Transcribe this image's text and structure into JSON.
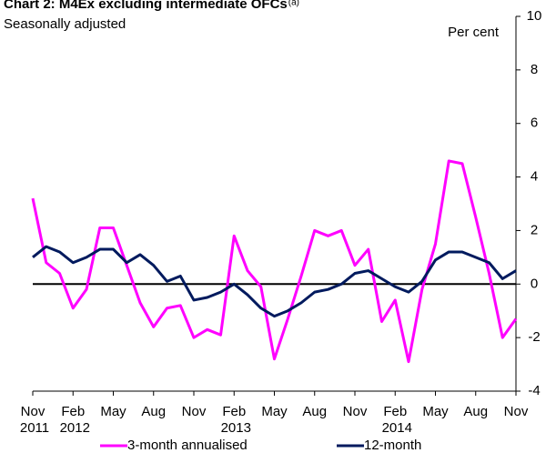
{
  "chart_data": {
    "type": "line",
    "title": "Chart 2: M4Ex excluding intermediate OFCs",
    "title_note": "(a)",
    "subtitle": "Seasonally adjusted",
    "y_label": "Per cent",
    "categories": [
      "Nov",
      null,
      null,
      "Feb",
      null,
      null,
      "May",
      null,
      null,
      "Aug",
      null,
      null,
      "Nov",
      null,
      null,
      "Feb",
      null,
      null,
      "May",
      null,
      null,
      "Aug",
      null,
      null,
      "Nov",
      null,
      null,
      "Feb",
      null,
      null,
      "May",
      null,
      null,
      "Aug",
      null,
      null,
      "Nov"
    ],
    "year_labels": [
      "2011",
      null,
      null,
      "2012",
      null,
      null,
      null,
      null,
      null,
      null,
      null,
      null,
      null,
      null,
      null,
      "2013",
      null,
      null,
      null,
      null,
      null,
      null,
      null,
      null,
      null,
      null,
      null,
      "2014",
      null,
      null,
      null,
      null,
      null,
      null,
      null,
      null,
      null
    ],
    "series": [
      {
        "name": "3-month annualised",
        "color": "#ff00ff",
        "values": [
          3.2,
          0.8,
          0.4,
          -0.9,
          -0.2,
          2.1,
          2.1,
          0.7,
          -0.7,
          -1.6,
          -0.9,
          -0.8,
          -2.0,
          -1.7,
          -1.9,
          1.8,
          0.5,
          -0.1,
          -2.8,
          -1.3,
          0.3,
          2.0,
          1.8,
          2.0,
          0.7,
          1.3,
          -1.4,
          -0.6,
          -2.9,
          -0.2,
          1.5,
          4.6,
          4.5,
          2.5,
          0.4,
          -2.0,
          -1.3
        ]
      },
      {
        "name": "12-month",
        "color": "#001a5e",
        "values": [
          1.0,
          1.4,
          1.2,
          0.8,
          1.0,
          1.3,
          1.3,
          0.8,
          1.1,
          0.7,
          0.1,
          0.3,
          -0.6,
          -0.5,
          -0.3,
          0.0,
          -0.4,
          -0.9,
          -1.2,
          -1.0,
          -0.7,
          -0.3,
          -0.2,
          0.0,
          0.4,
          0.5,
          0.2,
          -0.1,
          -0.3,
          0.1,
          0.9,
          1.2,
          1.2,
          1.0,
          0.8,
          0.2,
          0.5
        ]
      }
    ],
    "ylim": [
      -4,
      10
    ],
    "yticks": [
      -4,
      -2,
      0,
      2,
      4,
      6,
      8,
      10
    ],
    "legend": "bottom"
  }
}
